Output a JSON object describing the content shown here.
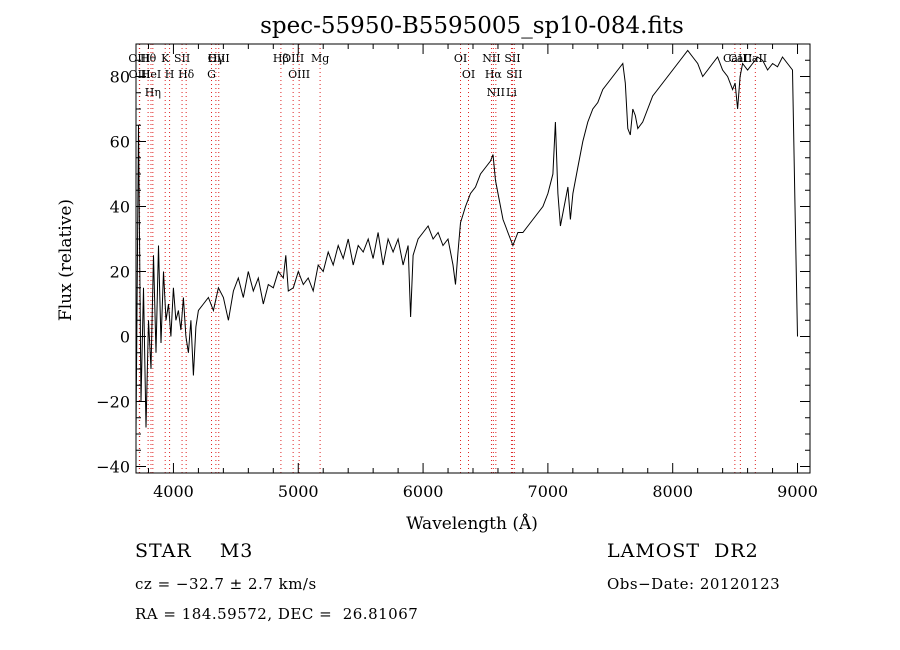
{
  "chart_data": {
    "type": "line",
    "title": "spec-55950-B5595005_sp10-084.fits",
    "xlabel": "Wavelength (Å)",
    "ylabel": "Flux (relative)",
    "xlim": [
      3700,
      9100
    ],
    "ylim": [
      -42,
      90
    ],
    "xticks": [
      4000,
      5000,
      6000,
      7000,
      8000,
      9000
    ],
    "yticks": [
      -40,
      -20,
      0,
      20,
      40,
      60,
      80
    ],
    "series": [
      {
        "x": [
          3700,
          3720,
          3740,
          3760,
          3780,
          3800,
          3820,
          3840,
          3860,
          3880,
          3900,
          3920,
          3940,
          3960,
          3980,
          4000,
          4020,
          4040,
          4060,
          4080,
          4100,
          4120,
          4140,
          4160,
          4180,
          4200,
          4240,
          4280,
          4320,
          4360,
          4400,
          4440,
          4480,
          4520,
          4560,
          4600,
          4640,
          4680,
          4720,
          4760,
          4800,
          4840,
          4880,
          4900,
          4920,
          4960,
          5000,
          5040,
          5080,
          5120,
          5160,
          5200,
          5240,
          5280,
          5320,
          5360,
          5400,
          5440,
          5480,
          5520,
          5560,
          5600,
          5640,
          5680,
          5720,
          5760,
          5800,
          5840,
          5880,
          5900,
          5920,
          5960,
          6000,
          6040,
          6080,
          6120,
          6160,
          6200,
          6240,
          6260,
          6280,
          6300,
          6340,
          6380,
          6420,
          6460,
          6500,
          6540,
          6560,
          6580,
          6600,
          6620,
          6640,
          6660,
          6680,
          6700,
          6720,
          6740,
          6760,
          6800,
          6840,
          6880,
          6920,
          6960,
          7000,
          7040,
          7060,
          7080,
          7100,
          7120,
          7140,
          7160,
          7180,
          7200,
          7240,
          7280,
          7320,
          7360,
          7400,
          7440,
          7480,
          7520,
          7560,
          7600,
          7620,
          7640,
          7660,
          7680,
          7700,
          7720,
          7760,
          7800,
          7840,
          7880,
          7920,
          7960,
          8000,
          8040,
          8080,
          8120,
          8160,
          8200,
          8240,
          8280,
          8320,
          8360,
          8400,
          8440,
          8480,
          8500,
          8520,
          8540,
          8560,
          8600,
          8640,
          8680,
          8720,
          8760,
          8800,
          8840,
          8880,
          8920,
          8960,
          8980,
          9000
        ],
        "values": [
          -30,
          65,
          -20,
          15,
          -28,
          5,
          -10,
          25,
          -5,
          28,
          -2,
          20,
          5,
          10,
          0,
          15,
          5,
          8,
          2,
          12,
          0,
          -5,
          5,
          -12,
          3,
          8,
          10,
          12,
          8,
          15,
          12,
          5,
          14,
          18,
          12,
          20,
          14,
          18,
          10,
          16,
          15,
          20,
          18,
          25,
          14,
          15,
          20,
          16,
          18,
          14,
          22,
          20,
          26,
          22,
          28,
          24,
          30,
          22,
          28,
          26,
          30,
          24,
          32,
          22,
          30,
          26,
          30,
          22,
          28,
          6,
          25,
          30,
          32,
          34,
          30,
          32,
          28,
          30,
          22,
          16,
          26,
          35,
          40,
          44,
          46,
          50,
          52,
          54,
          56,
          48,
          44,
          40,
          36,
          34,
          32,
          30,
          28,
          30,
          32,
          32,
          34,
          36,
          38,
          40,
          44,
          50,
          66,
          44,
          34,
          38,
          42,
          46,
          36,
          44,
          52,
          60,
          66,
          70,
          72,
          76,
          78,
          80,
          82,
          84,
          78,
          64,
          62,
          70,
          68,
          64,
          66,
          70,
          74,
          76,
          78,
          80,
          82,
          84,
          86,
          88,
          86,
          84,
          80,
          82,
          84,
          86,
          82,
          80,
          76,
          78,
          70,
          80,
          84,
          82,
          84,
          86,
          85,
          82,
          84,
          83,
          86,
          84,
          82,
          40,
          0
        ]
      }
    ],
    "lines": [
      {
        "label": "Hθ",
        "x": 3797
      },
      {
        "label": "OIII",
        "x": 3727
      },
      {
        "label": "OIII",
        "x": 3729
      },
      {
        "label": "HeI",
        "x": 3820
      },
      {
        "label": "Hη",
        "x": 3835
      },
      {
        "label": "K",
        "x": 3934
      },
      {
        "label": "H",
        "x": 3969
      },
      {
        "label": "SII",
        "x": 4069
      },
      {
        "label": "Hδ",
        "x": 4102
      },
      {
        "label": "OIII",
        "x": 4363
      },
      {
        "label": "Hγ",
        "x": 4340
      },
      {
        "label": "G",
        "x": 4305
      },
      {
        "label": "Hβ",
        "x": 4861
      },
      {
        "label": "OIII",
        "x": 4959
      },
      {
        "label": "OIII",
        "x": 5007
      },
      {
        "label": "Mg",
        "x": 5175
      },
      {
        "label": "OI",
        "x": 6300
      },
      {
        "label": "OI",
        "x": 6364
      },
      {
        "label": "NII",
        "x": 6548
      },
      {
        "label": "Hα",
        "x": 6563
      },
      {
        "label": "NII",
        "x": 6583
      },
      {
        "label": "SII",
        "x": 6716
      },
      {
        "label": "SII",
        "x": 6731
      },
      {
        "label": "Li",
        "x": 6708
      },
      {
        "label": "CaII",
        "x": 8498
      },
      {
        "label": "CaII",
        "x": 8542
      },
      {
        "label": "CaII",
        "x": 8662
      }
    ],
    "grid": false
  },
  "info": {
    "object": "STAR    M3",
    "survey": "LAMOST  DR2",
    "cz": "cz = −32.7 ± 2.7 km/s",
    "obs_date": "Obs−Date: 20120123",
    "coords": "RA = 184.59572, DEC =  26.81067"
  }
}
